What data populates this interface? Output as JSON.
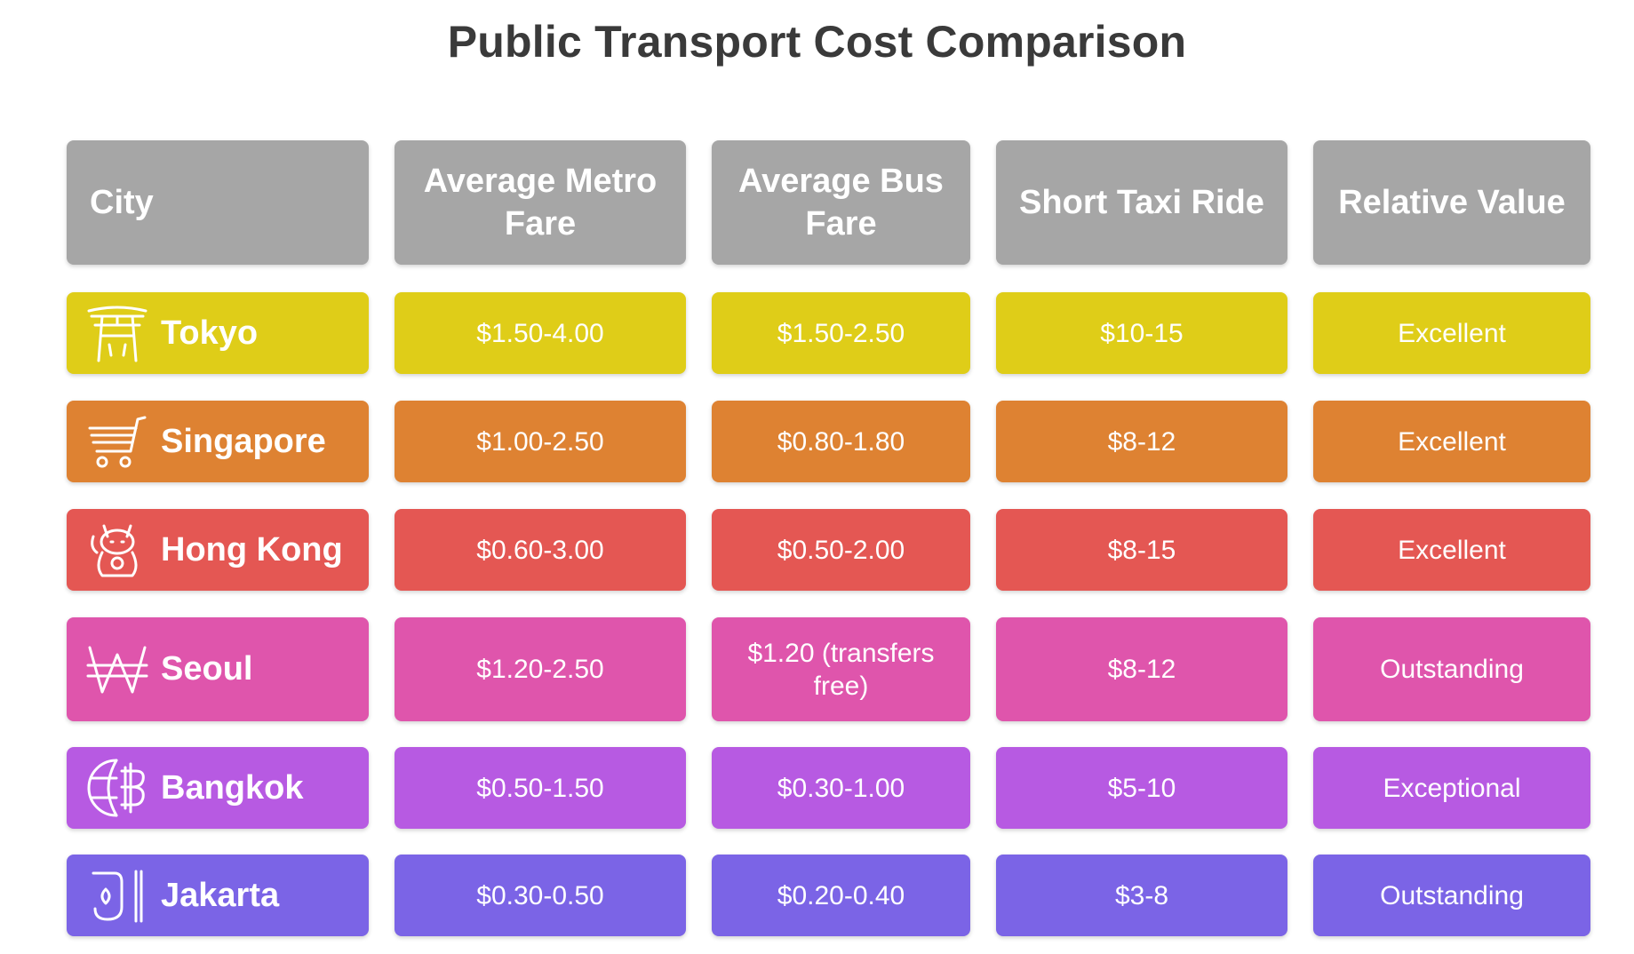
{
  "title": "Public Transport Cost Comparison",
  "headers": {
    "city": "City",
    "metro": "Average Metro Fare",
    "bus": "Average Bus Fare",
    "taxi": "Short Taxi Ride",
    "value": "Relative Value"
  },
  "colors": {
    "header": "#a6a6a6",
    "tokyo": "#dfcd18",
    "singapore": "#de8232",
    "hong_kong": "#e45753",
    "seoul": "#df55ac",
    "bangkok": "#b75ae2",
    "jakarta": "#7b64e6"
  },
  "rows": [
    {
      "city": "Tokyo",
      "icon": "torii-gate-icon",
      "metro": "$1.50-4.00",
      "bus": "$1.50-2.50",
      "taxi": "$10-15",
      "value": "Excellent"
    },
    {
      "city": "Singapore",
      "icon": "shopping-cart-icon",
      "metro": "$1.00-2.50",
      "bus": "$0.80-1.80",
      "taxi": "$8-12",
      "value": "Excellent"
    },
    {
      "city": "Hong Kong",
      "icon": "lucky-cat-icon",
      "metro": "$0.60-3.00",
      "bus": "$0.50-2.00",
      "taxi": "$8-15",
      "value": "Excellent"
    },
    {
      "city": "Seoul",
      "icon": "won-sign-icon",
      "metro": "$1.20-2.50",
      "bus": "$1.20 (transfers free)",
      "taxi": "$8-12",
      "value": "Outstanding"
    },
    {
      "city": "Bangkok",
      "icon": "baht-globe-icon",
      "metro": "$0.50-1.50",
      "bus": "$0.30-1.00",
      "taxi": "$5-10",
      "value": "Exceptional"
    },
    {
      "city": "Jakarta",
      "icon": "rupiah-sign-icon",
      "metro": "$0.30-0.50",
      "bus": "$0.20-0.40",
      "taxi": "$3-8",
      "value": "Outstanding"
    }
  ]
}
